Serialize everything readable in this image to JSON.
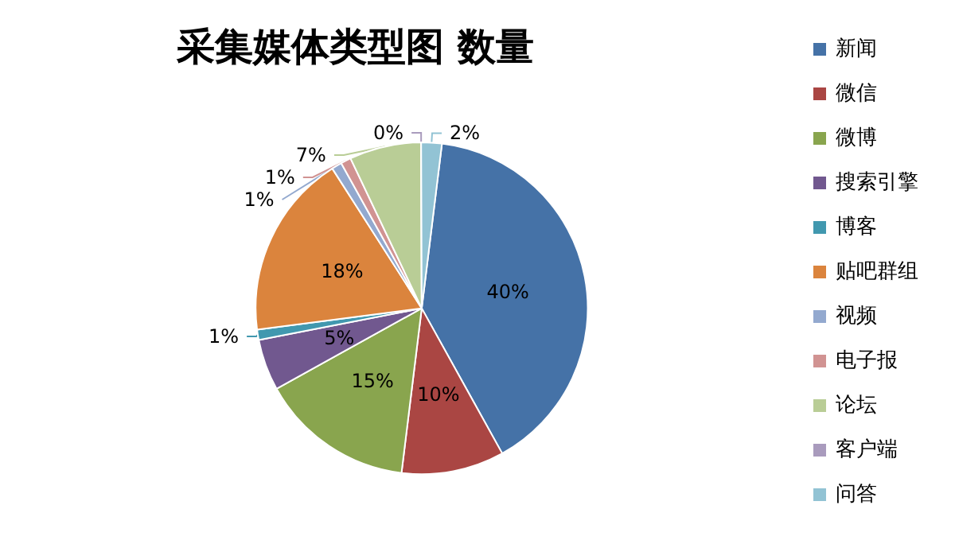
{
  "chart_data": {
    "type": "pie",
    "title": "采集媒体类型图 数量",
    "categories": [
      "新闻",
      "微信",
      "微博",
      "搜索引擎",
      "博客",
      "贴吧群组",
      "视频",
      "电子报",
      "论坛",
      "客户端",
      "问答"
    ],
    "values": [
      40,
      10,
      15,
      5,
      1,
      18,
      1,
      1,
      7,
      0,
      2
    ],
    "value_labels": [
      "40%",
      "10%",
      "15%",
      "5%",
      "1%",
      "18%",
      "1%",
      "1%",
      "7%",
      "0%",
      "2%"
    ],
    "colors": [
      "#4572a7",
      "#aa4643",
      "#89a54e",
      "#71588f",
      "#4198af",
      "#db843d",
      "#93a9cf",
      "#d19392",
      "#b9cd96",
      "#a99bbd",
      "#92c3d4"
    ],
    "legend": "right"
  }
}
